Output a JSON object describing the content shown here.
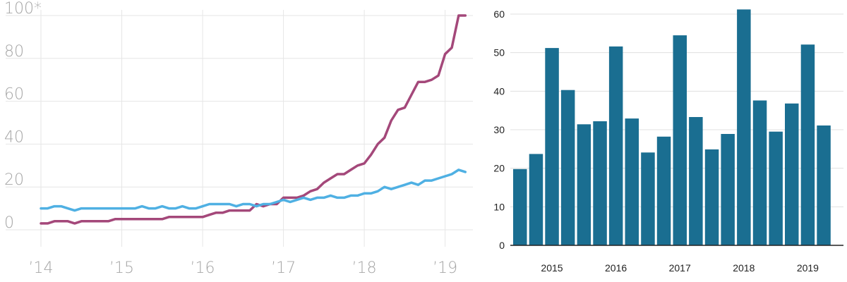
{
  "chart_data": [
    {
      "type": "line",
      "ylim": [
        0,
        100
      ],
      "yticks": [
        0,
        20,
        40,
        60,
        80,
        100
      ],
      "ytick_labels": [
        "0",
        "20",
        "40",
        "60",
        "80",
        "100*"
      ],
      "xlim": [
        2014.0,
        2019.3
      ],
      "xticks": [
        2014,
        2015,
        2016,
        2017,
        2018,
        2019
      ],
      "xtick_labels": [
        "’14",
        "’15",
        "’16",
        "’17",
        "’18",
        "’19"
      ],
      "grid": true,
      "colors": {
        "series_a": "#a4487a",
        "series_b": "#4fb0e3",
        "grid": "#e6e6e6",
        "text": "#a6a6a6"
      },
      "x": [
        2014.0,
        2014.083,
        2014.167,
        2014.25,
        2014.333,
        2014.417,
        2014.5,
        2014.583,
        2014.667,
        2014.75,
        2014.833,
        2014.917,
        2015.0,
        2015.083,
        2015.167,
        2015.25,
        2015.333,
        2015.417,
        2015.5,
        2015.583,
        2015.667,
        2015.75,
        2015.833,
        2015.917,
        2016.0,
        2016.083,
        2016.167,
        2016.25,
        2016.333,
        2016.417,
        2016.5,
        2016.583,
        2016.667,
        2016.75,
        2016.833,
        2016.917,
        2017.0,
        2017.083,
        2017.167,
        2017.25,
        2017.333,
        2017.417,
        2017.5,
        2017.583,
        2017.667,
        2017.75,
        2017.833,
        2017.917,
        2018.0,
        2018.083,
        2018.167,
        2018.25,
        2018.333,
        2018.417,
        2018.5,
        2018.583,
        2018.667,
        2018.75,
        2018.833,
        2018.917,
        2019.0,
        2019.083,
        2019.167,
        2019.25
      ],
      "series": [
        {
          "values": [
            3,
            3,
            4,
            4,
            4,
            3,
            4,
            4,
            4,
            4,
            4,
            5,
            5,
            5,
            5,
            5,
            5,
            5,
            5,
            6,
            6,
            6,
            6,
            6,
            6,
            7,
            8,
            8,
            9,
            9,
            9,
            9,
            12,
            11,
            12,
            12,
            15,
            15,
            15,
            16,
            18,
            19,
            22,
            24,
            26,
            26,
            28,
            30,
            31,
            35,
            40,
            43,
            51,
            56,
            57,
            63,
            69,
            69,
            70,
            72,
            82,
            85,
            100,
            100
          ]
        },
        {
          "values": [
            10,
            10,
            11,
            11,
            10,
            9,
            10,
            10,
            10,
            10,
            10,
            10,
            10,
            10,
            10,
            11,
            10,
            10,
            11,
            10,
            10,
            11,
            10,
            10,
            11,
            12,
            12,
            12,
            12,
            11,
            12,
            12,
            11,
            12,
            12,
            13,
            14,
            13,
            14,
            15,
            14,
            15,
            15,
            16,
            15,
            15,
            16,
            16,
            17,
            17,
            18,
            20,
            19,
            20,
            21,
            22,
            21,
            23,
            23,
            24,
            25,
            26,
            28,
            27
          ]
        }
      ]
    },
    {
      "type": "bar",
      "ylim": [
        0,
        60
      ],
      "yticks": [
        0,
        10,
        20,
        30,
        40,
        50,
        60
      ],
      "ytick_labels": [
        "0",
        "10",
        "20",
        "30",
        "40",
        "50",
        "60"
      ],
      "xtick_labels": [
        "2015",
        "2016",
        "2017",
        "2018",
        "2019"
      ],
      "xtick_after_bar": [
        2,
        6,
        10,
        14,
        18
      ],
      "grid": true,
      "colors": {
        "bar": "#1a6e91",
        "grid": "#e0e0e0",
        "axis": "#222222"
      },
      "values": [
        19.8,
        23.7,
        51.2,
        40.3,
        31.4,
        32.2,
        51.6,
        32.9,
        24.1,
        28.2,
        54.5,
        33.3,
        24.9,
        28.9,
        61.2,
        37.6,
        29.5,
        36.8,
        52.1,
        31.1
      ]
    }
  ]
}
